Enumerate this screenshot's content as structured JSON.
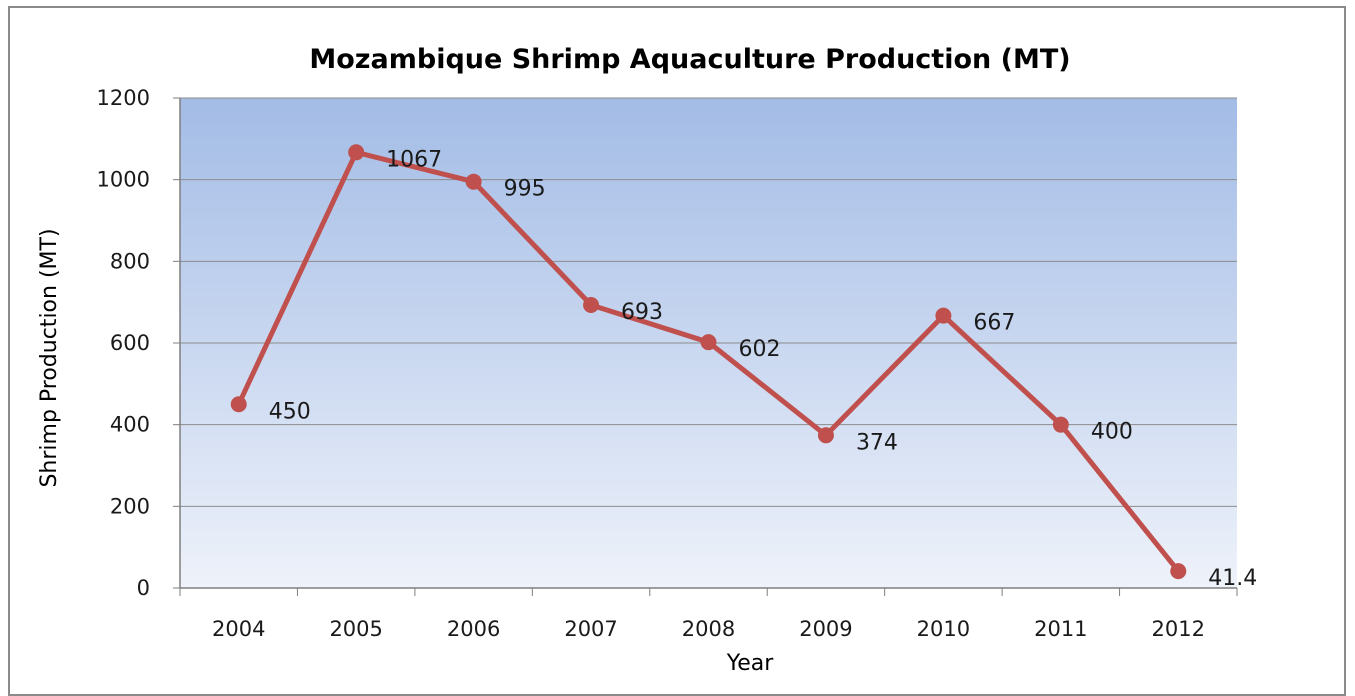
{
  "chart_data": {
    "type": "line",
    "title": "Mozambique Shrimp Aquaculture Production (MT)",
    "xlabel": "Year",
    "ylabel": "Shrimp Production (MT)",
    "ylim": [
      0,
      1200
    ],
    "yticks": [
      "0",
      "200",
      "400",
      "600",
      "800",
      "1000",
      "1200"
    ],
    "categories": [
      "2004",
      "2005",
      "2006",
      "2007",
      "2008",
      "2009",
      "2010",
      "2011",
      "2012"
    ],
    "values": [
      450,
      1067,
      995,
      693,
      602,
      374,
      667,
      400,
      41.4
    ],
    "data_labels": [
      "450",
      "1067",
      "995",
      "693",
      "602",
      "374",
      "667",
      "400",
      "41.4"
    ],
    "grid": true,
    "legend": "none",
    "colors": {
      "line": "#c0504d",
      "plot_top": "#a3bce6",
      "plot_bottom": "#eef2fa",
      "grid": "#8c8c8c"
    }
  }
}
